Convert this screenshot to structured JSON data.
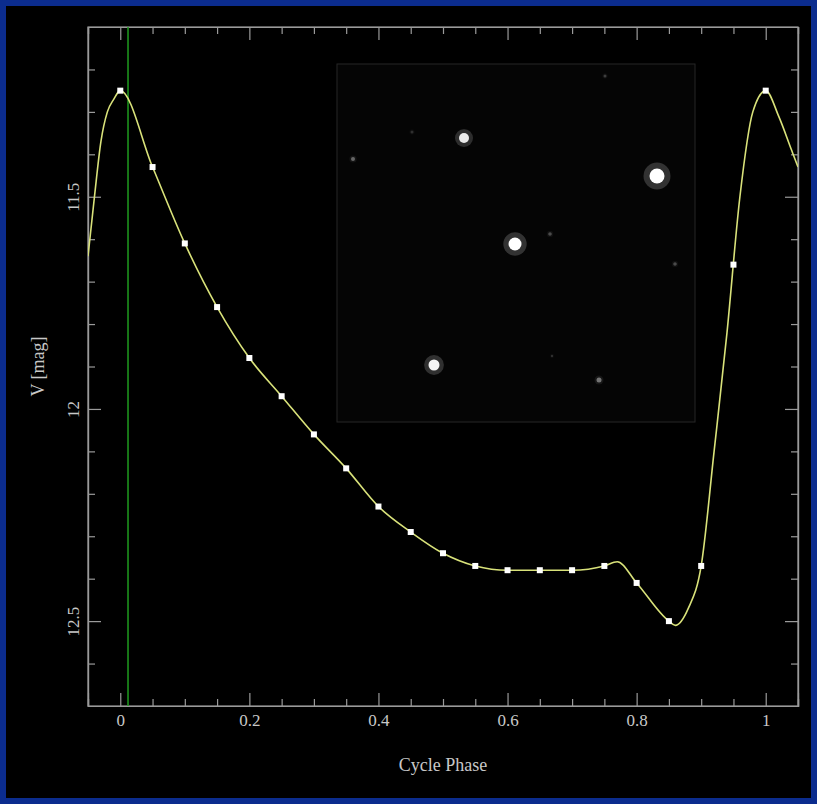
{
  "chart_data": {
    "type": "line",
    "x_label": "Cycle Phase",
    "y_label": "V [mag]",
    "xlim": [
      -0.05,
      1.05
    ],
    "ylim": [
      12.7,
      11.1
    ],
    "xticks": [
      0,
      0.2,
      0.4,
      0.6,
      0.8,
      1
    ],
    "yticks": [
      11.5,
      12,
      12.5
    ],
    "xticks_minor": [
      -0.05,
      0.05,
      0.1,
      0.15,
      0.25,
      0.3,
      0.35,
      0.45,
      0.5,
      0.55,
      0.65,
      0.7,
      0.75,
      0.85,
      0.9,
      0.95,
      1.05
    ],
    "yticks_minor": [
      11.2,
      11.3,
      11.4,
      11.6,
      11.7,
      11.8,
      11.9,
      12.1,
      12.2,
      12.3,
      12.4,
      12.6
    ],
    "vertical_line": {
      "x": 0.012,
      "color": "#1f9c1f"
    },
    "series": [
      {
        "type": "line",
        "color": "#d9e27a",
        "marker": "none",
        "line_style": "solid",
        "x": [
          -0.05,
          -0.04,
          -0.03,
          -0.02,
          -0.01,
          0,
          0.05,
          0.1,
          0.15,
          0.2,
          0.25,
          0.3,
          0.35,
          0.4,
          0.45,
          0.5,
          0.55,
          0.6,
          0.65,
          0.7,
          0.75,
          0.77,
          0.8,
          0.85,
          0.86,
          0.88,
          0.9,
          0.92,
          0.94,
          0.96,
          0.98,
          1,
          1.02,
          1.04,
          1.05
        ],
        "values": [
          11.64,
          11.5,
          11.37,
          11.3,
          11.27,
          11.25,
          11.43,
          11.61,
          11.76,
          11.88,
          11.97,
          12.06,
          12.14,
          12.23,
          12.29,
          12.34,
          12.37,
          12.38,
          12.38,
          12.38,
          12.37,
          12.36,
          12.41,
          12.5,
          12.51,
          12.47,
          12.37,
          12.1,
          11.82,
          11.5,
          11.3,
          11.25,
          11.31,
          11.39,
          11.43
        ]
      },
      {
        "type": "scatter",
        "color": "#ffffff",
        "marker": "square",
        "x": [
          0,
          0.05,
          0.1,
          0.15,
          0.2,
          0.25,
          0.3,
          0.35,
          0.4,
          0.45,
          0.5,
          0.55,
          0.6,
          0.65,
          0.7,
          0.75,
          0.8,
          0.85,
          0.9,
          0.95,
          1
        ],
        "values": [
          11.25,
          11.43,
          11.61,
          11.76,
          11.88,
          11.97,
          12.06,
          12.14,
          12.23,
          12.29,
          12.34,
          12.37,
          12.38,
          12.38,
          12.38,
          12.37,
          12.41,
          12.5,
          12.37,
          11.66,
          11.25
        ]
      }
    ]
  }
}
